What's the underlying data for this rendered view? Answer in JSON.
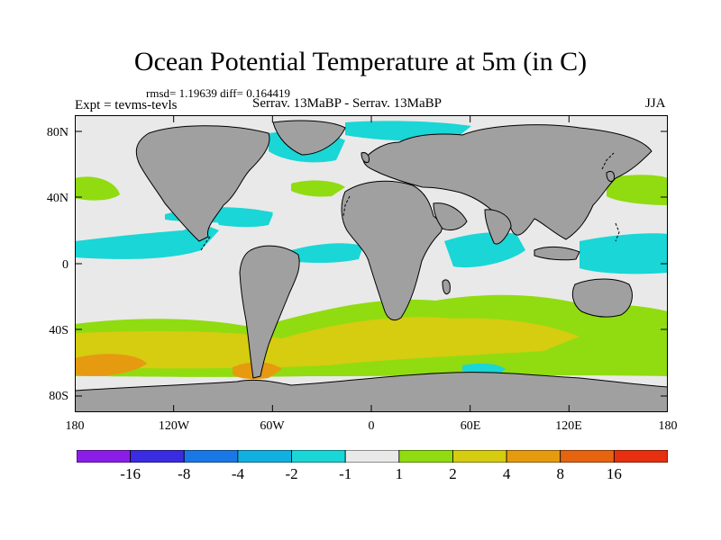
{
  "title": "Ocean Potential Temperature at 5m (in C)",
  "stats": "rmsd= 1.19639 diff= 0.164419",
  "expt": "Expt = tevms-tevls",
  "cases": "Serrav.  13MaBP - Serrav.  13MaBP",
  "season": "JJA",
  "lat_labels": [
    "80N",
    "40N",
    "0",
    "40S",
    "80S"
  ],
  "lon_labels": [
    "180",
    "120W",
    "60W",
    "0",
    "60E",
    "120E",
    "180"
  ],
  "colorbar": {
    "labels": [
      "-16",
      "-8",
      "-4",
      "-2",
      "-1",
      "1",
      "2",
      "4",
      "8",
      "16"
    ],
    "colors": [
      "#8a1ee6",
      "#3a2ce0",
      "#1a78e6",
      "#11b0e0",
      "#1ad6d6",
      "#e9e9e9",
      "#90dc10",
      "#d6cc10",
      "#e69a10",
      "#e66410",
      "#e63010"
    ]
  },
  "colors": {
    "land": "#a0a0a0",
    "ocean_neutral": "#e9e9e9",
    "cyan": "#1ad6d6",
    "green": "#90dc10",
    "yellow": "#d6cc10",
    "orange": "#e69a10",
    "dark_orange": "#e66410"
  }
}
